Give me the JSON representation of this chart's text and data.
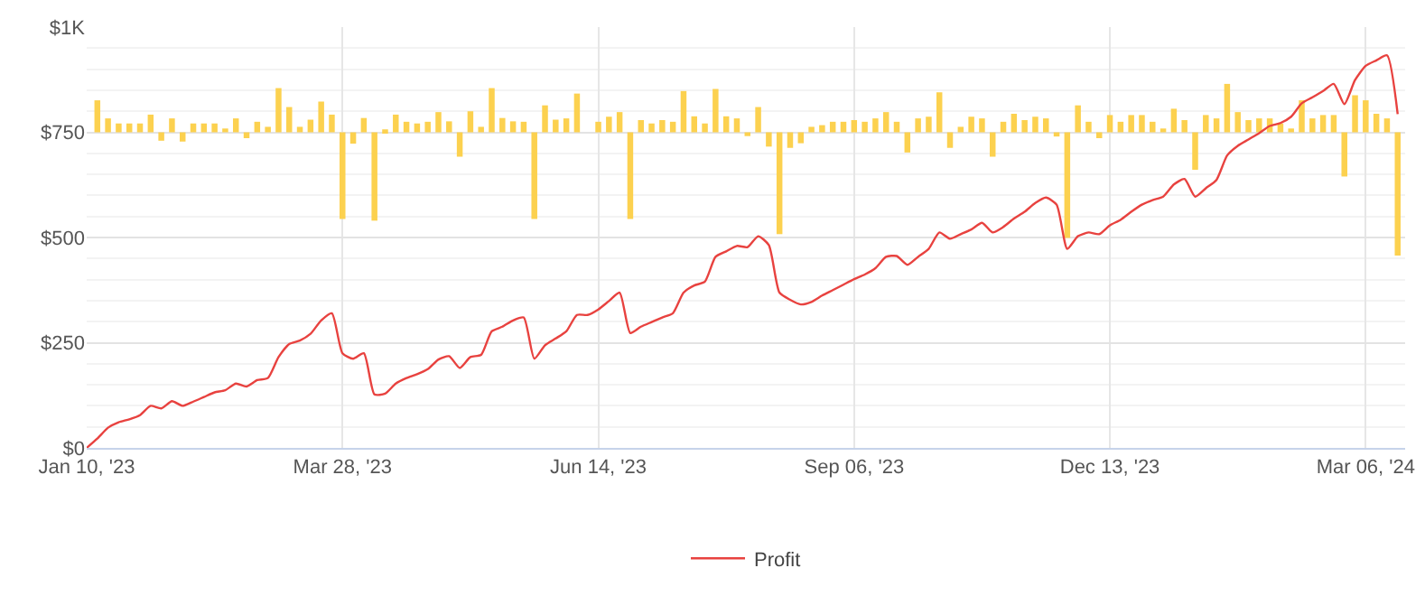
{
  "chart_data": {
    "type": "line",
    "categories": [
      "Jan 10, '23",
      null,
      null,
      null,
      null,
      null,
      null,
      null,
      null,
      null,
      null,
      null,
      null,
      null,
      null,
      null,
      null,
      null,
      null,
      null,
      null,
      null,
      null,
      null,
      "Mar 28, '23",
      null,
      null,
      null,
      null,
      null,
      null,
      null,
      null,
      null,
      null,
      null,
      null,
      null,
      null,
      null,
      null,
      null,
      null,
      null,
      null,
      null,
      null,
      null,
      "Jun 14, '23",
      null,
      null,
      null,
      null,
      null,
      null,
      null,
      null,
      null,
      null,
      null,
      null,
      null,
      null,
      null,
      null,
      null,
      null,
      null,
      null,
      null,
      null,
      null,
      "Sep 06, '23",
      null,
      null,
      null,
      null,
      null,
      null,
      null,
      null,
      null,
      null,
      null,
      null,
      null,
      null,
      null,
      null,
      null,
      null,
      null,
      null,
      null,
      null,
      null,
      "Dec 13, '23",
      null,
      null,
      null,
      null,
      null,
      null,
      null,
      null,
      null,
      null,
      null,
      null,
      null,
      null,
      null,
      null,
      null,
      null,
      null,
      null,
      null,
      null,
      null,
      "Mar 06, '24",
      null,
      null,
      null
    ],
    "series": [
      {
        "type": "bar",
        "color": "#fcd14f",
        "values": [
          null,
          76,
          33,
          21,
          21,
          21,
          42,
          -20,
          33,
          -22,
          21,
          21,
          21,
          9,
          33,
          -14,
          25,
          13,
          105,
          60,
          13,
          30,
          73,
          42,
          -206,
          -27,
          34,
          -210,
          7,
          42,
          25,
          21,
          25,
          48,
          26,
          -58,
          50,
          13,
          105,
          34,
          26,
          25,
          -206,
          64,
          30,
          33,
          92,
          null,
          25,
          37,
          48,
          -206,
          29,
          21,
          29,
          25,
          98,
          38,
          21,
          103,
          38,
          33,
          -9,
          60,
          -34,
          -242,
          -37,
          -26,
          13,
          17,
          25,
          25,
          29,
          25,
          33,
          48,
          25,
          -48,
          33,
          37,
          95,
          -37,
          13,
          37,
          33,
          -58,
          25,
          44,
          29,
          37,
          33,
          -10,
          -251,
          64,
          25,
          -14,
          41,
          25,
          41,
          41,
          25,
          9,
          56,
          29,
          -89,
          41,
          33,
          115,
          48,
          29,
          33,
          33,
          21,
          9,
          76,
          33,
          41,
          41,
          -105,
          88,
          76,
          44,
          33,
          -293
        ],
        "base": [
          null,
          750,
          750,
          750,
          750,
          750,
          750,
          750,
          750,
          750,
          750,
          750,
          750,
          750,
          750,
          750,
          750,
          750,
          750,
          750,
          750,
          750,
          750,
          750,
          750,
          750,
          750,
          750,
          750,
          750,
          750,
          750,
          750,
          750,
          750,
          750,
          750,
          750,
          750,
          750,
          750,
          750,
          750,
          750,
          750,
          750,
          750,
          null,
          750,
          750,
          750,
          750,
          750,
          750,
          750,
          750,
          750,
          750,
          750,
          750,
          750,
          750,
          750,
          750,
          750,
          750,
          750,
          750,
          750,
          750,
          750,
          750,
          750,
          750,
          750,
          750,
          750,
          750,
          750,
          750,
          750,
          750,
          750,
          750,
          750,
          750,
          750,
          750,
          750,
          750,
          750,
          750,
          750,
          750,
          750,
          750,
          750,
          750,
          750,
          750,
          750,
          750,
          750,
          750,
          750,
          750,
          750,
          750,
          750,
          750,
          750,
          750,
          750,
          750,
          750,
          750,
          750,
          750,
          750,
          750,
          750,
          750,
          750,
          750
        ]
      },
      {
        "name": "Profit",
        "color": "#e8423f",
        "values": [
          0,
          22,
          48,
          61,
          68,
          78,
          100,
          94,
          111,
          100,
          110,
          121,
          132,
          137,
          153,
          146,
          161,
          166,
          216,
          247,
          255,
          271,
          303,
          320,
          225,
          212,
          225,
          127,
          129,
          153,
          166,
          175,
          187,
          210,
          218,
          190,
          216,
          221,
          277,
          288,
          303,
          310,
          212,
          244,
          260,
          277,
          316,
          316,
          329,
          349,
          369,
          273,
          288,
          299,
          310,
          320,
          369,
          386,
          395,
          454,
          467,
          480,
          477,
          503,
          482,
          369,
          352,
          341,
          347,
          362,
          375,
          388,
          401,
          412,
          427,
          454,
          456,
          435,
          454,
          473,
          512,
          497,
          508,
          519,
          535,
          512,
          525,
          545,
          561,
          582,
          595,
          578,
          473,
          503,
          512,
          508,
          529,
          542,
          561,
          578,
          589,
          597,
          626,
          639,
          597,
          617,
          637,
          695,
          718,
          733,
          748,
          765,
          772,
          787,
          819,
          833,
          848,
          865,
          817,
          874,
          908,
          921,
          933,
          793
        ]
      }
    ],
    "ylim": [
      0,
      1000
    ],
    "yticks": [
      {
        "value": 0,
        "label": "$0"
      },
      {
        "value": 50,
        "label": null
      },
      {
        "value": 100,
        "label": null
      },
      {
        "value": 150,
        "label": null
      },
      {
        "value": 200,
        "label": null
      },
      {
        "value": 250,
        "label": "$250"
      },
      {
        "value": 300,
        "label": null
      },
      {
        "value": 350,
        "label": null
      },
      {
        "value": 400,
        "label": null
      },
      {
        "value": 450,
        "label": null
      },
      {
        "value": 500,
        "label": "$500"
      },
      {
        "value": 550,
        "label": null
      },
      {
        "value": 600,
        "label": null
      },
      {
        "value": 650,
        "label": null
      },
      {
        "value": 700,
        "label": null
      },
      {
        "value": 750,
        "label": "$750"
      },
      {
        "value": 800,
        "label": null
      },
      {
        "value": 850,
        "label": null
      },
      {
        "value": 900,
        "label": null
      },
      {
        "value": 950,
        "label": null
      },
      {
        "value": 1000,
        "label": "$1K"
      }
    ],
    "grid": true,
    "legend": "bottom",
    "marker": "none"
  }
}
